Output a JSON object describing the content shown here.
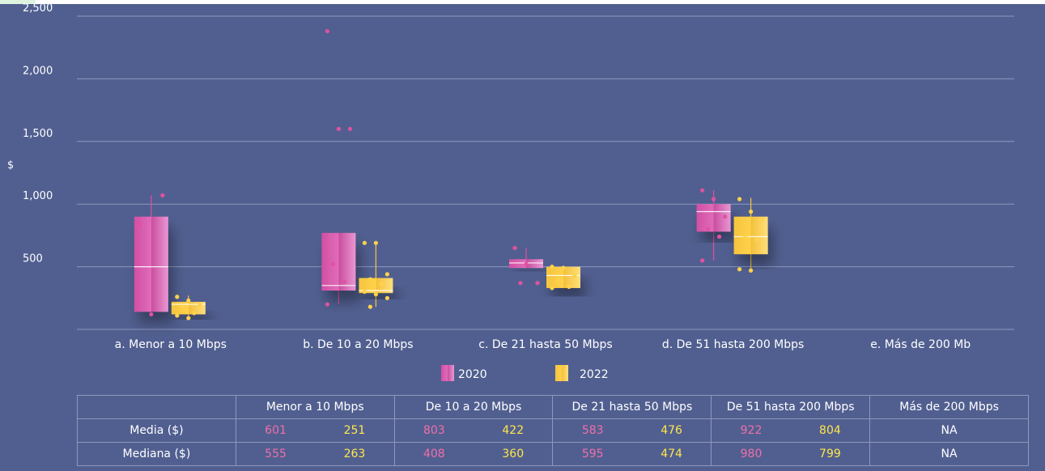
{
  "colors": {
    "background": "#515f90",
    "y2020": "#e06cb9",
    "y2022": "#ffd24a",
    "text2020": "#f06fa8",
    "text2022": "#ffe64a",
    "grid": "#8e98bd"
  },
  "chart_data": {
    "type": "box",
    "ylabel": "$",
    "yticks": [
      500,
      1000,
      1500,
      2000,
      2500
    ],
    "ytick_labels": [
      "500",
      "1,000",
      "1,500",
      "2,000",
      "2,500"
    ],
    "ylim": [
      0,
      2500
    ],
    "grid": true,
    "legend_placement": "bottom-center",
    "categories": [
      "a. Menor a 10 Mbps",
      "b. De 10 a 20 Mbps",
      "c. De 21 hasta 50 Mbps",
      "d. De 51 hasta 200 Mbps",
      "e. Más de 200 Mb"
    ],
    "series": [
      {
        "name": "2020",
        "boxes": [
          {
            "q1": 140,
            "median": 500,
            "q3": 900,
            "whisker_low": 140,
            "whisker_high": 1070,
            "points": [
              840,
              120,
              1070
            ]
          },
          {
            "q1": 310,
            "median": 350,
            "q3": 770,
            "whisker_low": 200,
            "whisker_high": 770,
            "points": [
              2380,
              1600,
              1600,
              520,
              380,
              200
            ]
          },
          {
            "q1": 490,
            "median": 530,
            "q3": 560,
            "whisker_low": 490,
            "whisker_high": 650,
            "points": [
              650,
              520,
              370,
              370
            ]
          },
          {
            "q1": 780,
            "median": 940,
            "q3": 1000,
            "whisker_low": 550,
            "whisker_high": 1110,
            "points": [
              1110,
              1040,
              900,
              800,
              740,
              550
            ]
          },
          null
        ]
      },
      {
        "name": "2022",
        "boxes": [
          {
            "q1": 120,
            "median": 200,
            "q3": 220,
            "whisker_low": 90,
            "whisker_high": 270,
            "points": [
              260,
              230,
              200,
              180,
              130,
              110,
              90
            ]
          },
          {
            "q1": 290,
            "median": 310,
            "q3": 410,
            "whisker_low": 180,
            "whisker_high": 690,
            "points": [
              690,
              690,
              440,
              400,
              360,
              300,
              280,
              250,
              180
            ]
          },
          {
            "q1": 330,
            "median": 430,
            "q3": 500,
            "whisker_low": 330,
            "whisker_high": 510,
            "points": [
              500,
              490,
              430,
              390,
              340,
              330
            ]
          },
          {
            "q1": 600,
            "median": 740,
            "q3": 900,
            "whisker_low": 470,
            "whisker_high": 1050,
            "points": [
              1040,
              940,
              880,
              740,
              720,
              480,
              470
            ]
          },
          null
        ]
      }
    ]
  },
  "table": {
    "headers": [
      "Menor a 10 Mbps",
      "De 10 a 20 Mbps",
      "De 21 hasta 50 Mbps",
      "De 51 hasta 200 Mbps",
      "Más de 200 Mbps"
    ],
    "media_label": "Media ($)",
    "mediana_label": "Mediana ($)",
    "media": [
      [
        "601",
        "251"
      ],
      [
        "803",
        "422"
      ],
      [
        "583",
        "476"
      ],
      [
        "922",
        "804"
      ]
    ],
    "mediana": [
      [
        "555",
        "263"
      ],
      [
        "408",
        "360"
      ],
      [
        "595",
        "474"
      ],
      [
        "980",
        "799"
      ]
    ],
    "na_media": "NA",
    "na_mediana": "NA"
  }
}
